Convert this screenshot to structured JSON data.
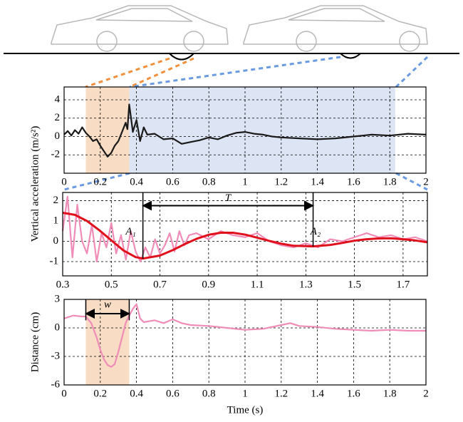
{
  "chart_data": [
    {
      "type": "line",
      "y_label": "Vertical acceleration (m/s²)",
      "xlim": [
        0,
        2
      ],
      "ylim": [
        -4,
        5.4
      ],
      "xticks": [
        0,
        0.2,
        0.4,
        0.6,
        0.8,
        1,
        1.2,
        1.4,
        1.6,
        1.8,
        2
      ],
      "yticks": [
        -2,
        0,
        2,
        4
      ],
      "grid": true,
      "spans": [
        {
          "x0": 0.12,
          "x1": 0.36,
          "color": "#f9dcc4"
        },
        {
          "x0": 0.36,
          "x1": 1.83,
          "color": "#dde4f4"
        }
      ],
      "series": [
        {
          "color": "#1a1a1a",
          "x": [
            0,
            0.02,
            0.04,
            0.06,
            0.08,
            0.1,
            0.12,
            0.14,
            0.16,
            0.18,
            0.2,
            0.22,
            0.24,
            0.26,
            0.28,
            0.3,
            0.32,
            0.34,
            0.35,
            0.36,
            0.37,
            0.38,
            0.4,
            0.42,
            0.44,
            0.46,
            0.5,
            0.55,
            0.6,
            0.65,
            0.7,
            0.75,
            0.8,
            0.85,
            0.9,
            0.95,
            1.0,
            1.05,
            1.1,
            1.15,
            1.2,
            1.3,
            1.4,
            1.5,
            1.6,
            1.7,
            1.8,
            1.9,
            2.0
          ],
          "values": [
            0.2,
            0.6,
            0.1,
            0.7,
            0.3,
            1.0,
            0.4,
            0,
            -0.5,
            -0.3,
            -1.0,
            -1.6,
            -2.2,
            -1.8,
            -1.0,
            -0.5,
            0.5,
            1.5,
            0.8,
            3.5,
            2.0,
            0.5,
            1.8,
            -0.5,
            1.0,
            0.2,
            0.3,
            -0.3,
            -0.2,
            -0.8,
            -0.6,
            -0.4,
            -0.1,
            -0.3,
            0.1,
            0.4,
            0.5,
            0.3,
            0.2,
            0.0,
            -0.1,
            -0.2,
            -0.3,
            -0.2,
            0.0,
            0.2,
            0.1,
            0.3,
            0.2
          ]
        }
      ]
    },
    {
      "type": "line",
      "xlim": [
        0.3,
        1.8
      ],
      "ylim": [
        -1.7,
        2.4
      ],
      "xticks": [
        0.3,
        0.5,
        0.7,
        0.9,
        1.1,
        1.3,
        1.5,
        1.7
      ],
      "yticks": [
        -1,
        0,
        1,
        2
      ],
      "grid": true,
      "series": [
        {
          "color": "#f08cb8",
          "x": [
            0.3,
            0.32,
            0.34,
            0.36,
            0.38,
            0.4,
            0.42,
            0.44,
            0.46,
            0.48,
            0.5,
            0.52,
            0.54,
            0.56,
            0.58,
            0.6,
            0.62,
            0.64,
            0.66,
            0.68,
            0.7,
            0.72,
            0.74,
            0.76,
            0.78,
            0.8,
            0.82,
            0.85,
            0.9,
            0.95,
            1.0,
            1.05,
            1.1,
            1.15,
            1.2,
            1.25,
            1.3,
            1.35,
            1.4,
            1.45,
            1.5,
            1.55,
            1.6,
            1.65,
            1.7,
            1.75,
            1.8
          ],
          "values": [
            0.5,
            2.2,
            -0.8,
            1.8,
            0,
            -0.6,
            0.8,
            -1.0,
            0.4,
            -0.3,
            0.9,
            -0.6,
            0.3,
            -0.9,
            0.5,
            -0.5,
            -1.0,
            -0.3,
            -0.8,
            0.1,
            -0.6,
            -0.2,
            0.4,
            -0.5,
            0.5,
            -0.2,
            0.3,
            0.4,
            0.1,
            0.5,
            0.3,
            0.2,
            0.4,
            0,
            -0.2,
            -0.3,
            -0.1,
            -0.3,
            0.1,
            0,
            0.2,
            0.4,
            0.2,
            0.3,
            0.1,
            0.2,
            0.0
          ]
        },
        {
          "color": "#e0101c",
          "x": [
            0.3,
            0.35,
            0.4,
            0.45,
            0.5,
            0.55,
            0.6,
            0.63,
            0.7,
            0.75,
            0.8,
            0.85,
            0.9,
            0.95,
            1.0,
            1.05,
            1.1,
            1.15,
            1.2,
            1.25,
            1.33,
            1.4,
            1.45,
            1.5,
            1.55,
            1.6,
            1.65,
            1.7,
            1.75,
            1.8
          ],
          "values": [
            1.4,
            1.3,
            1.0,
            0.55,
            0.05,
            -0.45,
            -0.78,
            -0.85,
            -0.7,
            -0.45,
            -0.15,
            0.12,
            0.32,
            0.42,
            0.42,
            0.33,
            0.18,
            0.02,
            -0.12,
            -0.22,
            -0.25,
            -0.18,
            -0.08,
            0.03,
            0.1,
            0.14,
            0.15,
            0.1,
            0.04,
            -0.05
          ]
        }
      ],
      "vlines": [
        {
          "x": 0.63,
          "y0": -0.85,
          "y1": 2.4
        },
        {
          "x": 1.33,
          "y0": -0.25,
          "y1": 2.4
        }
      ],
      "arrows": [
        {
          "x0": 0.63,
          "x1": 1.33,
          "y": 1.75
        }
      ],
      "annotations": [
        {
          "text": "T",
          "x": 0.98,
          "y": 2.1
        },
        {
          "text": "A₁",
          "x": 0.58,
          "y": 0.45
        },
        {
          "text": "A₂",
          "x": 1.34,
          "y": 0.45
        }
      ]
    },
    {
      "type": "line",
      "x_label": "Time (s)",
      "y_label": "Distance (cm)",
      "xlim": [
        0,
        2
      ],
      "ylim": [
        -6,
        3
      ],
      "xticks": [
        0,
        0.2,
        0.4,
        0.6,
        0.8,
        1,
        1.2,
        1.4,
        1.6,
        1.8,
        2
      ],
      "yticks": [
        -6,
        -3,
        0,
        3
      ],
      "grid": true,
      "spans": [
        {
          "x0": 0.12,
          "x1": 0.36,
          "color": "#f9dcc4"
        }
      ],
      "series": [
        {
          "color": "#f08cb8",
          "x": [
            0,
            0.05,
            0.1,
            0.12,
            0.15,
            0.18,
            0.2,
            0.22,
            0.24,
            0.26,
            0.28,
            0.3,
            0.32,
            0.34,
            0.36,
            0.38,
            0.4,
            0.42,
            0.44,
            0.5,
            0.55,
            0.6,
            0.65,
            0.7,
            0.8,
            0.9,
            1.0,
            1.1,
            1.2,
            1.25,
            1.3,
            1.4,
            1.5,
            1.6,
            1.7,
            1.8,
            1.9,
            2.0
          ],
          "values": [
            1.0,
            1.3,
            1.2,
            1.2,
            0.5,
            -1.0,
            -2.3,
            -3.3,
            -3.9,
            -4.1,
            -3.8,
            -2.5,
            -1.0,
            0.5,
            1.3,
            2.0,
            2.5,
            1.0,
            0.6,
            0.8,
            0.5,
            0.9,
            0.5,
            0.3,
            0.2,
            0,
            -0.2,
            -0.1,
            0.3,
            0.5,
            0.2,
            0.1,
            -0.1,
            -0.2,
            -0.3,
            -0.2,
            -0.3,
            -0.3
          ]
        }
      ],
      "vlines": [
        {
          "x": 0.12,
          "y0": 0.8,
          "y1": 3
        },
        {
          "x": 0.36,
          "y0": 0.8,
          "y1": 3
        }
      ],
      "arrows": [
        {
          "x0": 0.12,
          "x1": 0.36,
          "y": 1.5
        }
      ],
      "annotations": [
        {
          "text": "w",
          "x": 0.24,
          "y": 2.4
        }
      ]
    }
  ]
}
